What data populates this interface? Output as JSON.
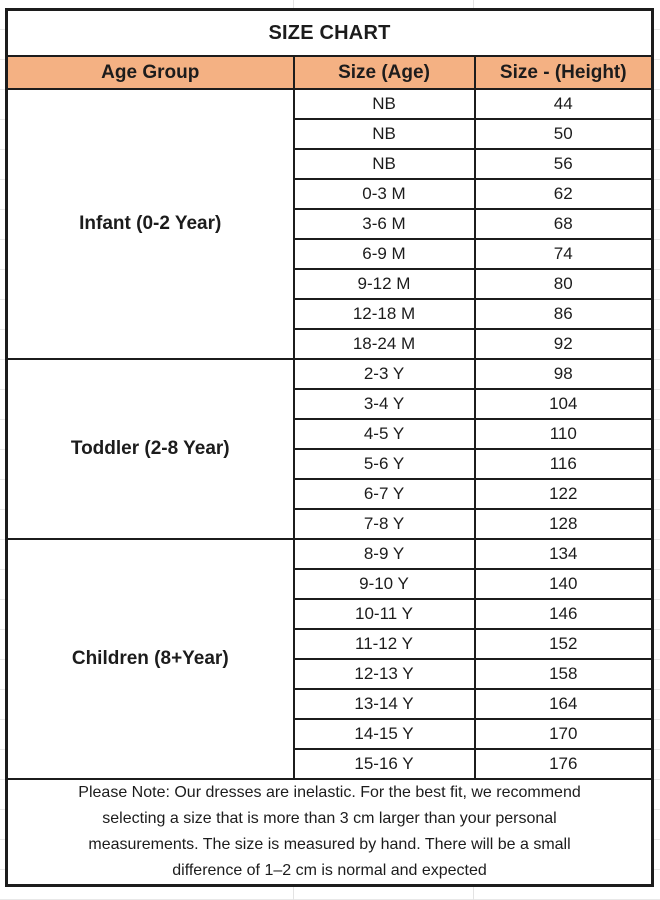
{
  "title": "SIZE CHART",
  "columns": [
    "Age Group",
    "Size (Age)",
    "Size - (Height)"
  ],
  "groups": [
    {
      "label": "Infant (0-2 Year)",
      "rows": [
        [
          "NB",
          "44"
        ],
        [
          "NB",
          "50"
        ],
        [
          "NB",
          "56"
        ],
        [
          "0-3 M",
          "62"
        ],
        [
          "3-6 M",
          "68"
        ],
        [
          "6-9 M",
          "74"
        ],
        [
          "9-12 M",
          "80"
        ],
        [
          "12-18 M",
          "86"
        ],
        [
          "18-24 M",
          "92"
        ]
      ]
    },
    {
      "label": "Toddler (2-8 Year)",
      "rows": [
        [
          "2-3 Y",
          "98"
        ],
        [
          "3-4 Y",
          "104"
        ],
        [
          "4-5 Y",
          "110"
        ],
        [
          "5-6 Y",
          "116"
        ],
        [
          "6-7 Y",
          "122"
        ],
        [
          "7-8 Y",
          "128"
        ]
      ]
    },
    {
      "label": "Children (8+Year)",
      "rows": [
        [
          "8-9 Y",
          "134"
        ],
        [
          "9-10 Y",
          "140"
        ],
        [
          "10-11 Y",
          "146"
        ],
        [
          "11-12 Y",
          "152"
        ],
        [
          "12-13 Y",
          "158"
        ],
        [
          "13-14 Y",
          "164"
        ],
        [
          "14-15 Y",
          "170"
        ],
        [
          "15-16 Y",
          "176"
        ]
      ]
    }
  ],
  "note": "Please Note: Our dresses are inelastic. For the best fit, we recommend\nselecting a size that is more than 3 cm larger than your personal\nmeasurements. The size is measured by hand. There will be a small\ndifference of 1–2 cm is normal and expected",
  "colors": {
    "header_fill": "#F4B183",
    "border": "#1c1c1c",
    "gridline": "#e3e3e3",
    "text": "#1c1c1c",
    "background": "#ffffff"
  }
}
